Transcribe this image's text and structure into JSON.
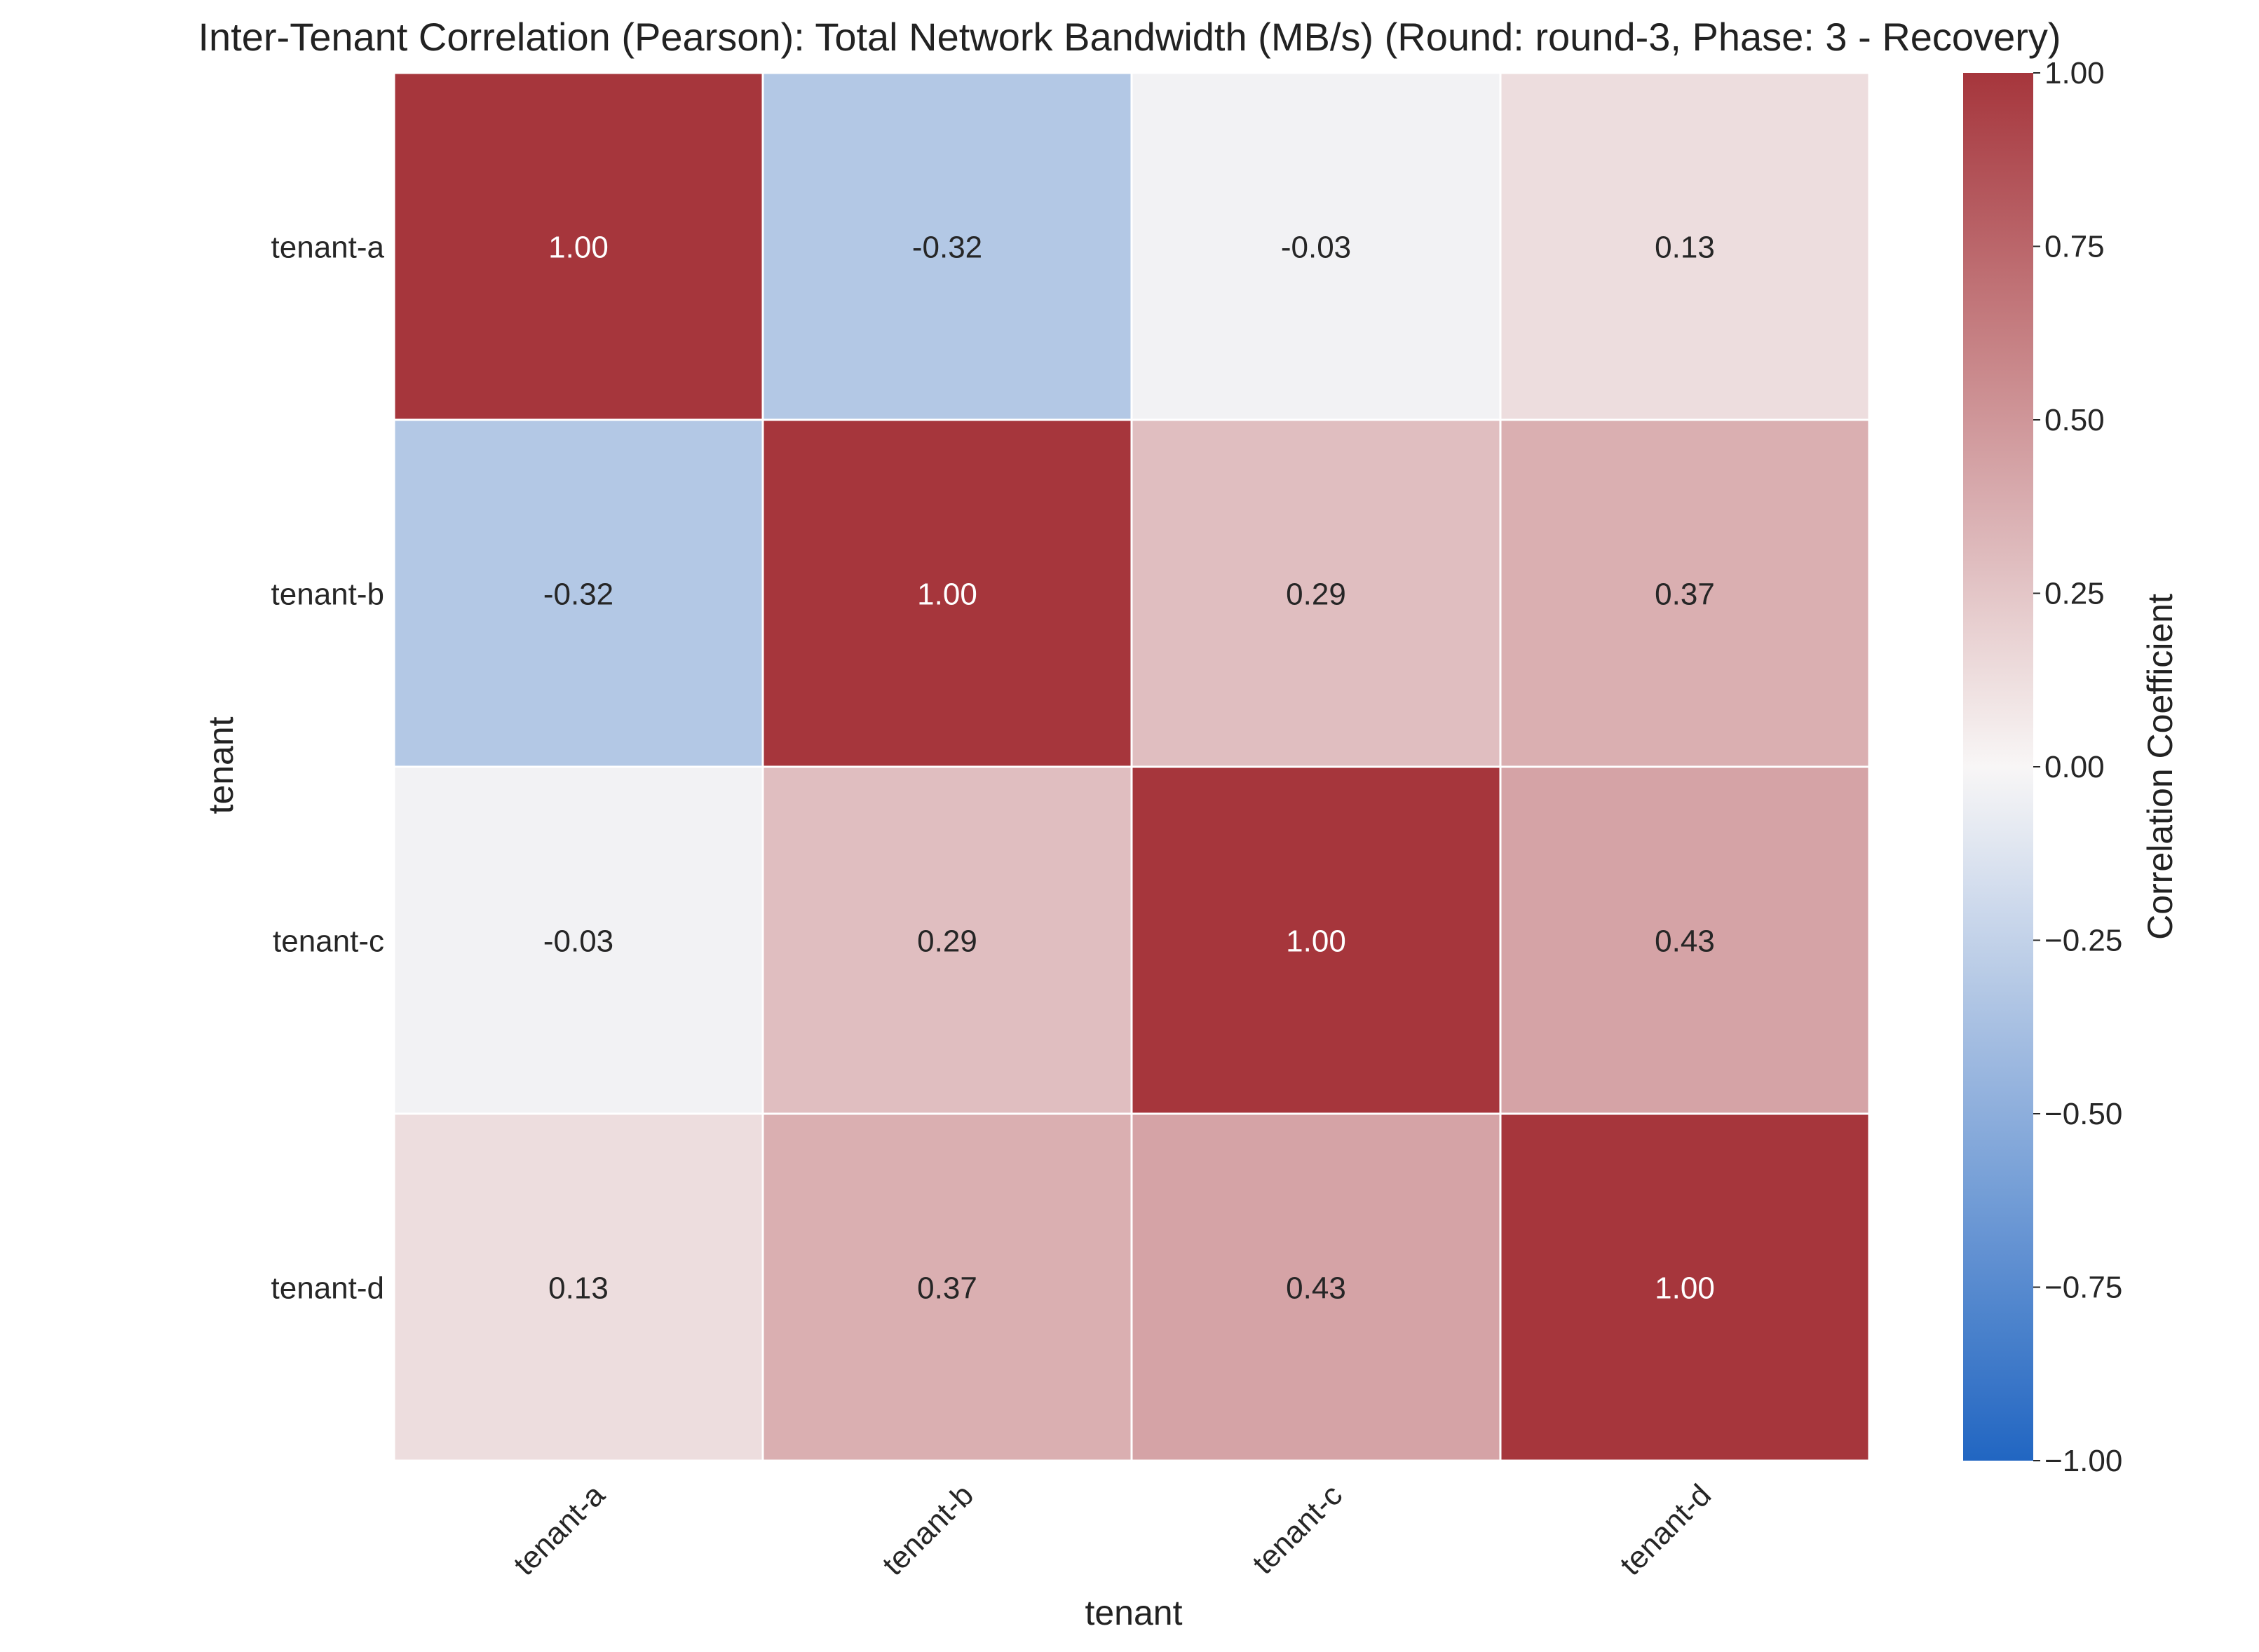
{
  "chart_data": {
    "type": "heatmap",
    "title": "Inter-Tenant Correlation (Pearson): Total Network Bandwidth (MB/s) (Round: round-3, Phase: 3 - Recovery)",
    "xlabel": "tenant",
    "ylabel": "tenant",
    "x_categories": [
      "tenant-a",
      "tenant-b",
      "tenant-c",
      "tenant-d"
    ],
    "y_categories": [
      "tenant-a",
      "tenant-b",
      "tenant-c",
      "tenant-d"
    ],
    "values": [
      [
        1.0,
        -0.32,
        -0.03,
        0.13
      ],
      [
        -0.32,
        1.0,
        0.29,
        0.37
      ],
      [
        -0.03,
        0.29,
        1.0,
        0.43
      ],
      [
        0.13,
        0.37,
        0.43,
        1.0
      ]
    ],
    "cell_labels": [
      [
        "1.00",
        "-0.32",
        "-0.03",
        "0.13"
      ],
      [
        "-0.32",
        "1.00",
        "0.29",
        "0.37"
      ],
      [
        "-0.03",
        "0.29",
        "1.00",
        "0.43"
      ],
      [
        "0.13",
        "0.37",
        "0.43",
        "1.00"
      ]
    ],
    "colorbar": {
      "label": "Correlation Coefficient",
      "range": [
        -1.0,
        1.0
      ],
      "ticks": [
        1.0,
        0.75,
        0.5,
        0.25,
        0.0,
        -0.25,
        -0.5,
        -0.75,
        -1.0
      ],
      "tick_labels": [
        "1.00",
        "0.75",
        "0.50",
        "0.25",
        "0.00",
        "−0.25",
        "−0.50",
        "−0.75",
        "−1.00"
      ],
      "colormap": "vlag",
      "colors": {
        "negative_end": "#2166c2",
        "neutral": "#f8f6f6",
        "positive_end": "#a6363c"
      }
    },
    "cell_border_color": "#ffffff",
    "grid": false
  }
}
